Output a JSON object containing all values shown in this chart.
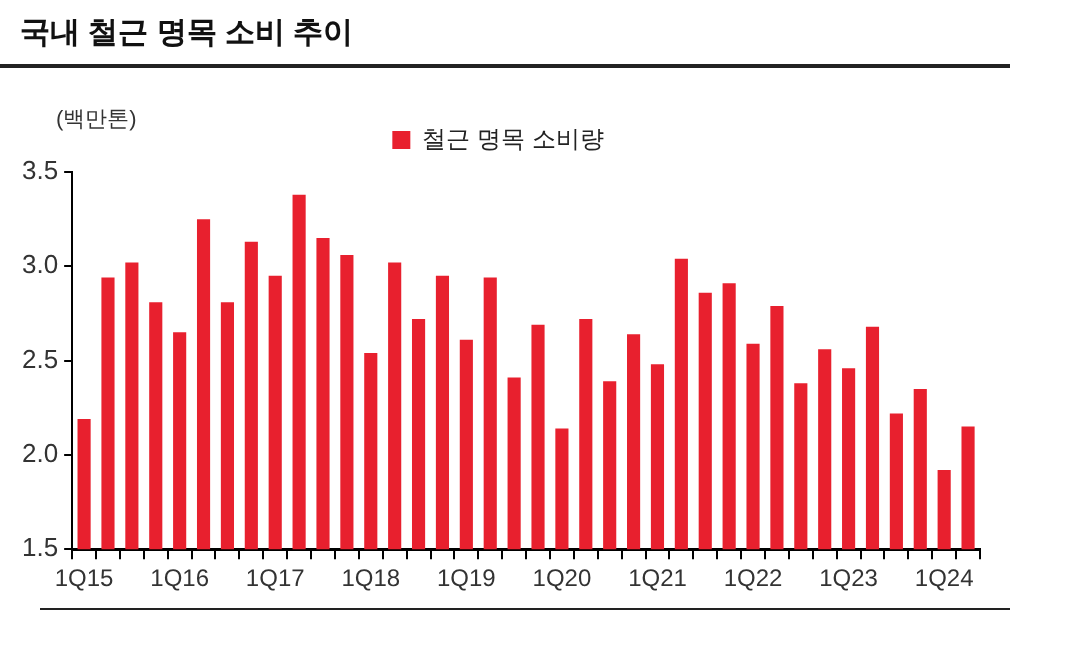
{
  "chart_data": {
    "type": "bar",
    "title": "국내 철근 명목 소비 추이",
    "ylabel": "(백만톤)",
    "categories": [
      "1Q15",
      null,
      null,
      null,
      "1Q16",
      null,
      null,
      null,
      "1Q17",
      null,
      null,
      null,
      "1Q18",
      null,
      null,
      null,
      "1Q19",
      null,
      null,
      null,
      "1Q20",
      null,
      null,
      null,
      "1Q21",
      null,
      null,
      null,
      "1Q22",
      null,
      null,
      null,
      "1Q23",
      null,
      null,
      null,
      "1Q24",
      null
    ],
    "series": [
      {
        "name": "철근 명목 소비량",
        "color": "#e8202e",
        "values": [
          2.19,
          2.94,
          3.02,
          2.81,
          2.65,
          3.25,
          2.81,
          3.13,
          2.95,
          3.38,
          3.15,
          3.06,
          2.54,
          3.02,
          2.72,
          2.95,
          2.61,
          2.94,
          2.41,
          2.69,
          2.14,
          2.72,
          2.39,
          2.64,
          2.48,
          3.04,
          2.86,
          2.91,
          2.59,
          2.79,
          2.38,
          2.56,
          2.46,
          2.68,
          2.22,
          2.35,
          1.92,
          2.15
        ]
      }
    ],
    "ylim": [
      1.5,
      3.5
    ],
    "yticks": [
      1.5,
      {
        "value": 2,
        "label": "2.0"
      },
      2.5,
      {
        "value": 3,
        "label": "3.0"
      },
      3.5
    ],
    "grid": false,
    "legend": "top"
  }
}
